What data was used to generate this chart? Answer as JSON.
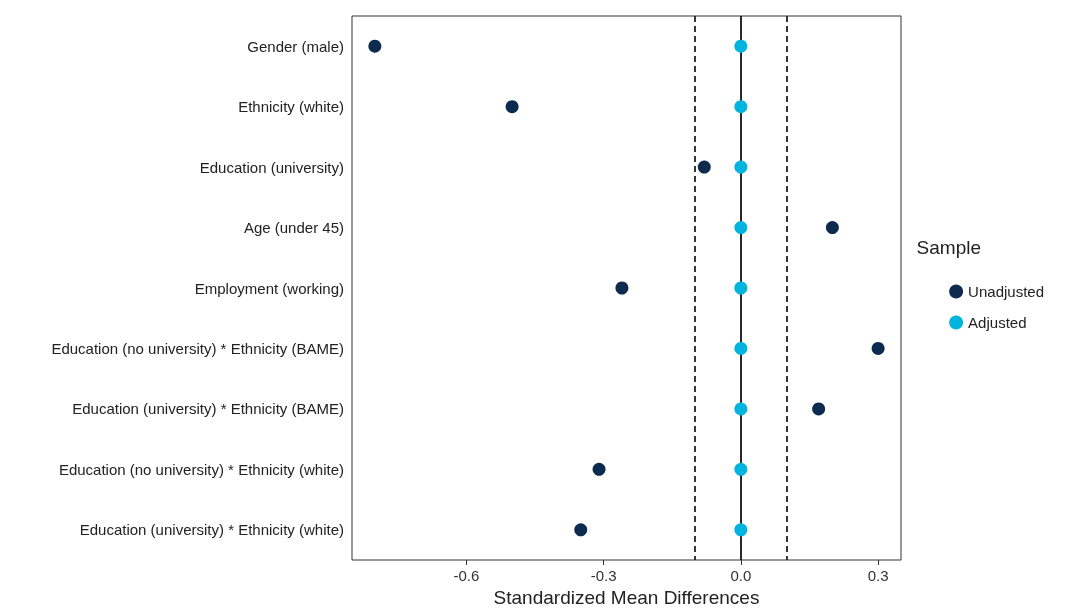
{
  "chart_data": {
    "type": "scatter",
    "xlabel": "Standardized Mean Differences",
    "legend_title": "Sample",
    "categories": [
      "Gender (male)",
      "Ethnicity (white)",
      "Education (university)",
      "Age (under 45)",
      "Employment (working)",
      "Education (no university) * Ethnicity (BAME)",
      "Education (university) * Ethnicity (BAME)",
      "Education (no university) * Ethnicity (white)",
      "Education (university) * Ethnicity (white)"
    ],
    "series": [
      {
        "name": "Unadjusted",
        "color": "#0d2b4e",
        "values": [
          -0.8,
          -0.5,
          -0.08,
          0.2,
          -0.26,
          0.3,
          0.17,
          -0.31,
          -0.35
        ]
      },
      {
        "name": "Adjusted",
        "color": "#00b4e0",
        "values": [
          0,
          0,
          0,
          0,
          0,
          0,
          0,
          0,
          0
        ]
      }
    ],
    "orientation": "horizontal",
    "xlim": [
      -0.85,
      0.35
    ],
    "xticks": [
      -0.6,
      -0.3,
      {
        "value": 0,
        "label": "0.0"
      },
      0.3
    ],
    "ref_lines": [
      {
        "axis": "x",
        "value": -0.1,
        "line_style": "dashed",
        "color": "#222222"
      },
      {
        "axis": "x",
        "value": 0,
        "line_style": "solid",
        "color": "#111111"
      },
      {
        "axis": "x",
        "value": 0.1,
        "line_style": "dashed",
        "color": "#222222"
      }
    ],
    "grid": false,
    "legend": "right",
    "marker": "circle"
  }
}
